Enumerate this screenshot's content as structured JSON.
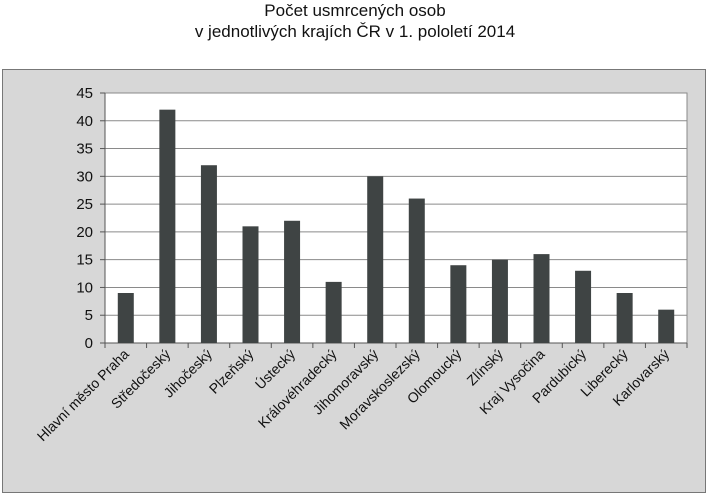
{
  "title_lines": [
    "Počet usmrcených osob",
    "v jednotlivých krajích ČR v 1. pololetí 2014"
  ],
  "chart_data": {
    "type": "bar",
    "title": "Počet usmrcených osob v jednotlivých krajích ČR v 1. pololetí 2014",
    "categories": [
      "Hlavní město Praha",
      "Středočeský",
      "Jihočeský",
      "Plzeňský",
      "Ústecký",
      "Královéhradecký",
      "Jihomoravský",
      "Moravskoslezský",
      "Olomoucký",
      "Zlínský",
      "Kraj Vysočina",
      "Pardubický",
      "Liberecký",
      "Karlovarský"
    ],
    "values": [
      9,
      42,
      32,
      21,
      22,
      11,
      30,
      26,
      14,
      15,
      16,
      13,
      9,
      6
    ],
    "ylim": [
      0,
      45
    ],
    "yticks": [
      0,
      5,
      10,
      15,
      20,
      25,
      30,
      35,
      40,
      45
    ],
    "grid": true,
    "colors": {
      "bar": "#3f4444",
      "plot_background": "#ffffff",
      "frame_background": "#d7d7d7"
    }
  }
}
